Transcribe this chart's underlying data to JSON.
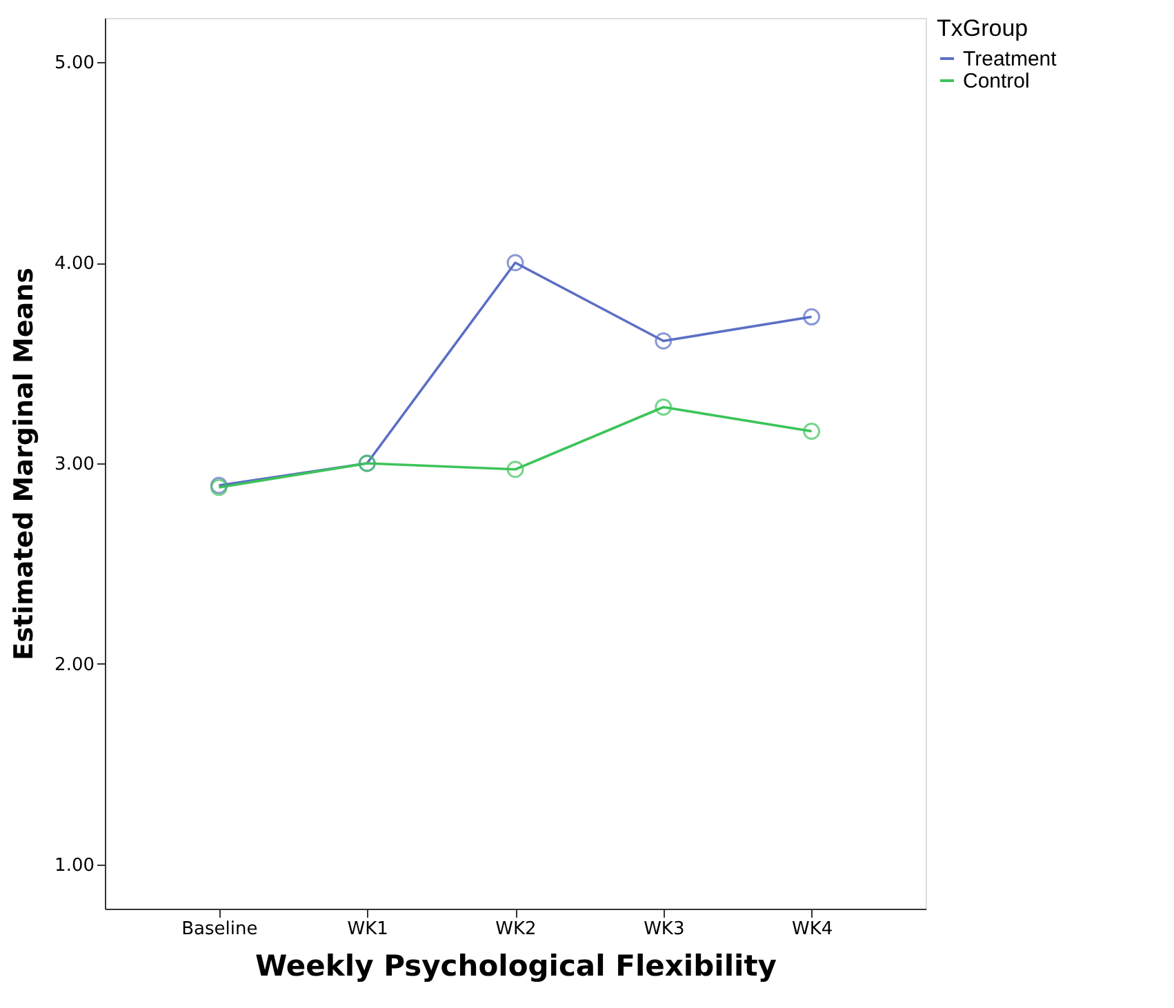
{
  "chart_data": {
    "type": "line",
    "xlabel": "Weekly Psychological Flexibility",
    "ylabel": "Estimated Marginal Means",
    "legend_title": "TxGroup",
    "categories": [
      "Baseline",
      "WK1",
      "WK2",
      "WK3",
      "WK4"
    ],
    "series": [
      {
        "name": "Treatment",
        "color": "#5b6fc5",
        "values": [
          2.89,
          3.0,
          4.0,
          3.61,
          3.73
        ]
      },
      {
        "name": "Control",
        "color": "#3cc45a",
        "values": [
          2.88,
          3.0,
          2.97,
          3.28,
          3.16
        ]
      }
    ],
    "ylim": [
      0.78,
      5.22
    ],
    "yticks": [
      {
        "value": 1,
        "label": "1.00"
      },
      {
        "value": 2,
        "label": "2.00"
      },
      {
        "value": 3,
        "label": "3.00"
      },
      {
        "value": 4,
        "label": "4.00"
      },
      {
        "value": 5,
        "label": "5.00"
      }
    ],
    "grid": false,
    "legend": "top right",
    "marker": "circle",
    "line_style": "solid"
  }
}
